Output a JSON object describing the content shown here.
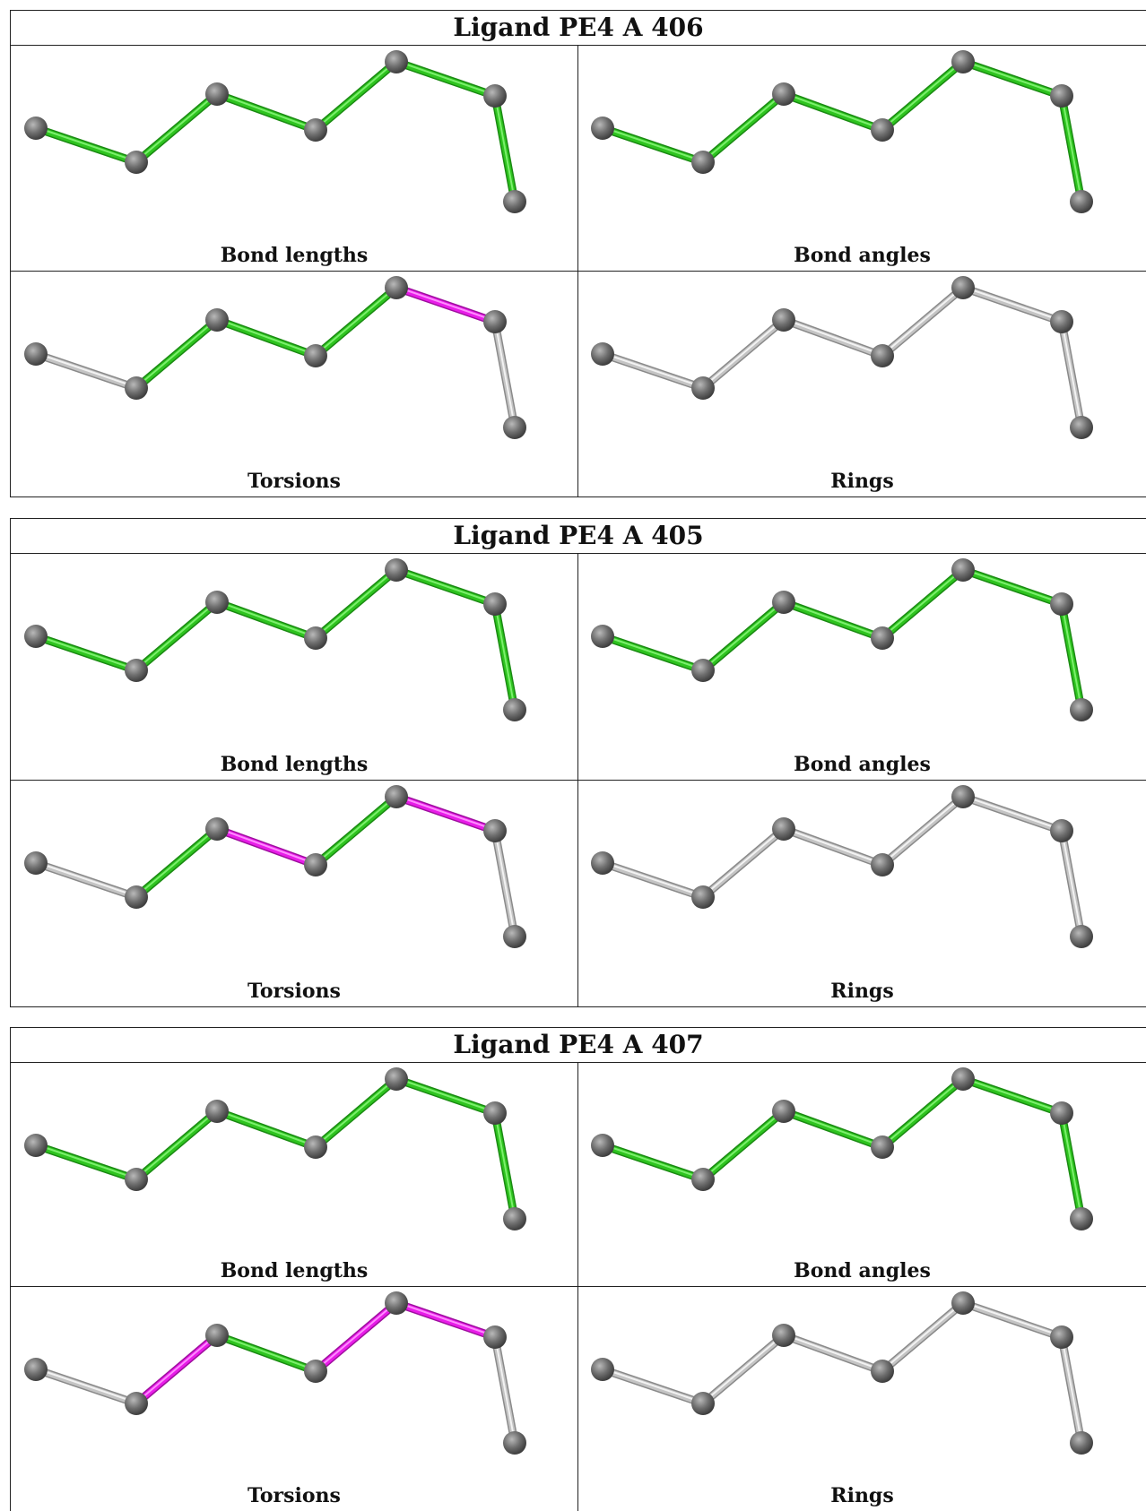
{
  "colors": {
    "green": "#2ec41f",
    "magenta": "#e81ce8",
    "gray": "#c4c4c4",
    "atom": "#6f6f6f"
  },
  "ligands": [
    {
      "title": "Ligand PE4 A 406",
      "panels": [
        {
          "label": "Bond lengths",
          "bonds": [
            "green",
            "green",
            "green",
            "green",
            "green",
            "green"
          ]
        },
        {
          "label": "Bond angles",
          "bonds": [
            "green",
            "green",
            "green",
            "green",
            "green",
            "green"
          ]
        },
        {
          "label": "Torsions",
          "bonds": [
            "gray",
            "green",
            "green",
            "green",
            "magenta",
            "gray"
          ]
        },
        {
          "label": "Rings",
          "bonds": [
            "gray",
            "gray",
            "gray",
            "gray",
            "gray",
            "gray"
          ]
        }
      ]
    },
    {
      "title": "Ligand PE4 A 405",
      "panels": [
        {
          "label": "Bond lengths",
          "bonds": [
            "green",
            "green",
            "green",
            "green",
            "green",
            "green"
          ]
        },
        {
          "label": "Bond angles",
          "bonds": [
            "green",
            "green",
            "green",
            "green",
            "green",
            "green"
          ]
        },
        {
          "label": "Torsions",
          "bonds": [
            "gray",
            "green",
            "magenta",
            "green",
            "magenta",
            "gray"
          ]
        },
        {
          "label": "Rings",
          "bonds": [
            "gray",
            "gray",
            "gray",
            "gray",
            "gray",
            "gray"
          ]
        }
      ]
    },
    {
      "title": "Ligand PE4 A 407",
      "panels": [
        {
          "label": "Bond lengths",
          "bonds": [
            "green",
            "green",
            "green",
            "green",
            "green",
            "green"
          ]
        },
        {
          "label": "Bond angles",
          "bonds": [
            "green",
            "green",
            "green",
            "green",
            "green",
            "green"
          ]
        },
        {
          "label": "Torsions",
          "bonds": [
            "gray",
            "magenta",
            "green",
            "magenta",
            "magenta",
            "gray"
          ]
        },
        {
          "label": "Rings",
          "bonds": [
            "gray",
            "gray",
            "gray",
            "gray",
            "gray",
            "gray"
          ]
        }
      ]
    }
  ]
}
